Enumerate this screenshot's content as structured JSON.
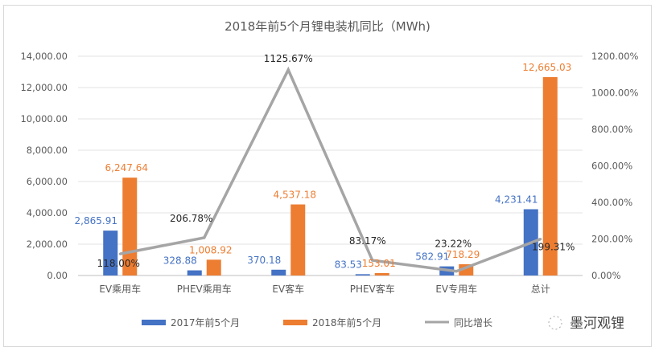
{
  "chart_data": {
    "type": "bar",
    "title": "2018年前5个月锂电装机同比（MWh)",
    "categories": [
      "EV乘用车",
      "PHEV乘用车",
      "EV客车",
      "PHEV客车",
      "EV专用车",
      "总计"
    ],
    "series": [
      {
        "name": "2017年前5个月",
        "type": "bar",
        "axis": "left",
        "color": "#4472c4",
        "values": [
          2865.91,
          328.88,
          370.18,
          83.53,
          582.91,
          4231.41
        ],
        "labels": [
          "2,865.91",
          "328.88",
          "370.18",
          "83.53",
          "582.91",
          "4,231.41"
        ]
      },
      {
        "name": "2018年前5个月",
        "type": "bar",
        "axis": "left",
        "color": "#ed7d31",
        "values": [
          6247.64,
          1008.92,
          4537.18,
          153.01,
          718.29,
          12665.03
        ],
        "labels": [
          "6,247.64",
          "1,008.92",
          "4,537.18",
          "153.01",
          "718.29",
          "12,665.03"
        ]
      },
      {
        "name": "同比增长",
        "type": "line",
        "axis": "right",
        "color": "#a5a5a5",
        "values": [
          118.0,
          206.78,
          1125.67,
          83.17,
          23.22,
          199.31
        ],
        "labels": [
          "118.00%",
          "206.78%",
          "1125.67%",
          "83.17%",
          "23.22%",
          "199.31%"
        ]
      }
    ],
    "y_left": {
      "range": [
        0,
        14000
      ],
      "ticks": [
        "0.00",
        "2,000.00",
        "4,000.00",
        "6,000.00",
        "8,000.00",
        "10,000.00",
        "12,000.00",
        "14,000.00"
      ]
    },
    "y_right": {
      "range": [
        0,
        1200
      ],
      "unit": "%",
      "ticks": [
        "0.00%",
        "200.00%",
        "400.00%",
        "600.00%",
        "800.00%",
        "1000.00%",
        "1200.00%"
      ]
    },
    "grid": true,
    "legend": "bottom"
  },
  "watermark": "墨河观锂"
}
